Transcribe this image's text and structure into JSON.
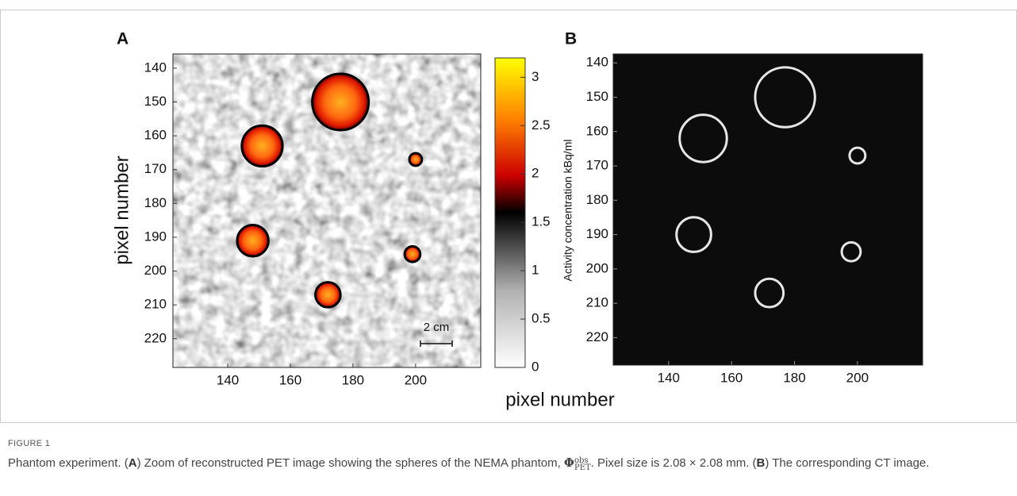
{
  "figure": {
    "panels": [
      {
        "label": "A",
        "xlim": [
          122.5,
          220.8
        ],
        "ylim": [
          135.8,
          228.5
        ],
        "xticks": [
          140,
          160,
          180,
          200
        ],
        "yticks": [
          140,
          150,
          160,
          170,
          180,
          190,
          200,
          210,
          220
        ],
        "ylabel": "pixel number",
        "scalebar": "2 cm",
        "spheres": [
          {
            "x": 176,
            "y": 150,
            "r": 9
          },
          {
            "x": 151,
            "y": 163,
            "r": 6.5
          },
          {
            "x": 200,
            "y": 167,
            "r": 2
          },
          {
            "x": 148,
            "y": 191,
            "r": 5
          },
          {
            "x": 199,
            "y": 195,
            "r": 2.5
          },
          {
            "x": 172,
            "y": 207,
            "r": 4
          }
        ]
      },
      {
        "label": "B",
        "xlim": [
          122.4,
          220.7
        ],
        "ylim": [
          137.4,
          228
        ],
        "xticks": [
          140,
          160,
          180,
          200
        ],
        "yticks": [
          140,
          150,
          160,
          170,
          180,
          190,
          200,
          210,
          220
        ],
        "ylabel": "Activity concentration kBq/ml",
        "spheres": [
          {
            "x": 177,
            "y": 150,
            "r": 9.5
          },
          {
            "x": 151,
            "y": 162,
            "r": 7.5
          },
          {
            "x": 200,
            "y": 167,
            "r": 2.5
          },
          {
            "x": 148,
            "y": 190,
            "r": 5.5
          },
          {
            "x": 198,
            "y": 195,
            "r": 3
          },
          {
            "x": 172,
            "y": 207,
            "r": 4.5
          }
        ]
      }
    ],
    "colorbar": {
      "clim": [
        0,
        3.2
      ],
      "ticks": [
        0,
        0.5,
        1,
        1.5,
        2,
        2.5,
        3
      ]
    },
    "xlabel": "pixel number",
    "figure_label": "FIGURE 1",
    "caption": [
      "Phantom experiment. (",
      "A",
      ") Zoom of reconstructed PET image showing the spheres of the NEMA phantom, ",
      "Φ",
      "obs",
      "PET",
      ". Pixel size is 2.08 × 2.08 mm. (",
      "B",
      ") The corresponding CT image."
    ]
  }
}
